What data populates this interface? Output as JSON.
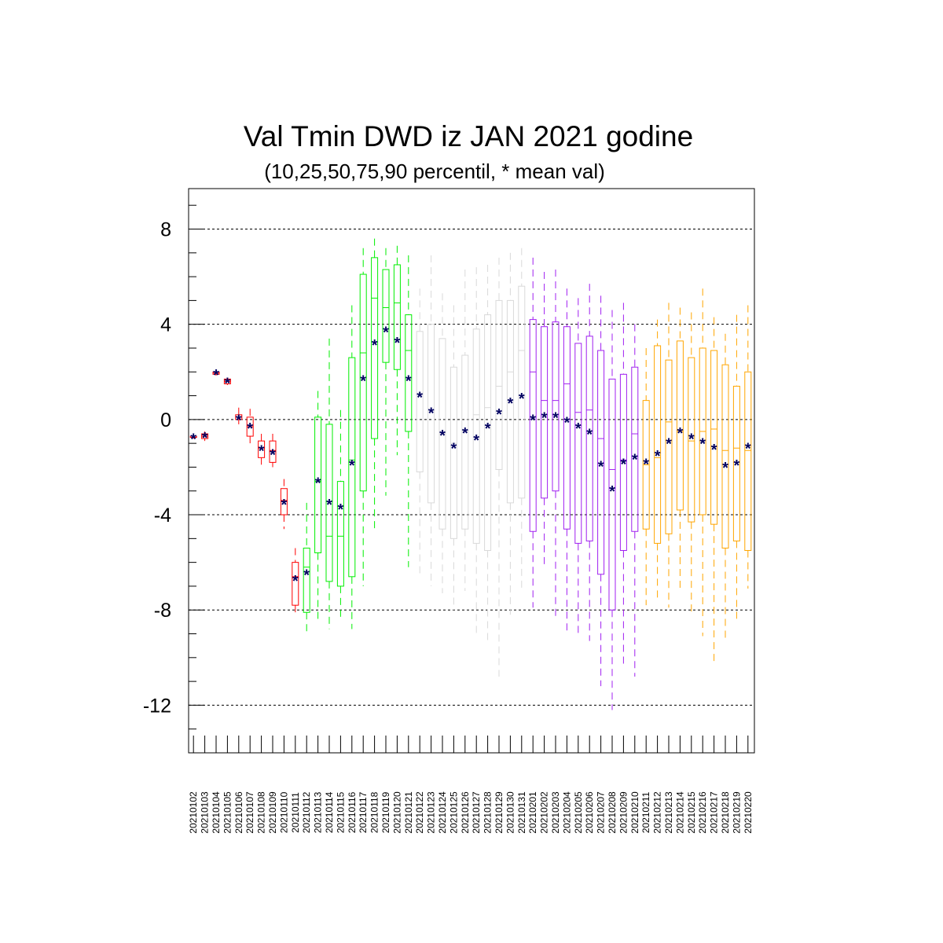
{
  "chart_data": {
    "type": "box",
    "title": "Val Tmin DWD iz JAN 2021 godine",
    "subtitle": "(10,25,50,75,90 percentil, * mean val)",
    "xlabel": "",
    "ylabel": "",
    "ylim": [
      -14,
      9.7
    ],
    "yticks": [
      8,
      4,
      0,
      -4,
      -8,
      -12
    ],
    "ytick_labels": [
      "8",
      "4",
      "0",
      "-4",
      "-8",
      "-12"
    ],
    "grid": "horizontal dashed at major y ticks",
    "categories": [
      "20210102",
      "20210103",
      "20210104",
      "20210105",
      "20210106",
      "20210107",
      "20210108",
      "20210109",
      "20210110",
      "20210111",
      "20210112",
      "20210113",
      "20210114",
      "20210115",
      "20210116",
      "20210117",
      "20210118",
      "20210119",
      "20210120",
      "20210121",
      "20210122",
      "20210123",
      "20210124",
      "20210125",
      "20210126",
      "20210127",
      "20210128",
      "20210129",
      "20210130",
      "20210131",
      "20210201",
      "20210202",
      "20210203",
      "20210204",
      "20210205",
      "20210206",
      "20210207",
      "20210208",
      "20210209",
      "20210210",
      "20210211",
      "20210212",
      "20210213",
      "20210214",
      "20210215",
      "20210216",
      "20210217",
      "20210218",
      "20210219",
      "20210220"
    ],
    "series": [
      {
        "color": "#ff0000",
        "boxes": [
          {
            "p10": -0.8,
            "p25": -0.75,
            "p50": -0.75,
            "p75": -0.7,
            "p90": -0.7,
            "mean": -0.75
          },
          {
            "p10": -0.9,
            "p25": -0.8,
            "p50": -0.7,
            "p75": -0.6,
            "p90": -0.5,
            "mean": -0.7
          },
          {
            "p10": 1.85,
            "p25": 1.9,
            "p50": 1.95,
            "p75": 2.0,
            "p90": 2.05,
            "mean": 1.95
          },
          {
            "p10": 1.45,
            "p25": 1.5,
            "p50": 1.6,
            "p75": 1.7,
            "p90": 1.75,
            "mean": 1.6
          },
          {
            "p10": -0.2,
            "p25": 0.0,
            "p50": 0.1,
            "p75": 0.2,
            "p90": 0.5,
            "mean": 0.05
          },
          {
            "p10": -1.0,
            "p25": -0.7,
            "p50": -0.3,
            "p75": 0.1,
            "p90": 0.45,
            "mean": -0.3
          },
          {
            "p10": -2.0,
            "p25": -1.6,
            "p50": -1.2,
            "p75": -0.9,
            "p90": -0.6,
            "mean": -1.25
          },
          {
            "p10": -2.0,
            "p25": -1.8,
            "p50": -1.3,
            "p75": -0.9,
            "p90": -0.6,
            "mean": -1.4
          },
          {
            "p10": -4.6,
            "p25": -4.0,
            "p50": -3.4,
            "p75": -2.9,
            "p90": -2.5,
            "mean": -3.5
          },
          {
            "p10": -8.1,
            "p25": -7.8,
            "p50": -6.6,
            "p75": -6.0,
            "p90": -5.4,
            "mean": -6.7
          }
        ]
      },
      {
        "color": "#00ee00",
        "boxes": [
          {
            "p10": -8.9,
            "p25": -8.1,
            "p50": -6.2,
            "p75": -5.4,
            "p90": -3.5,
            "mean": -6.45
          },
          {
            "p10": -8.5,
            "p25": -5.6,
            "p50": -2.6,
            "p75": 0.1,
            "p90": 1.2,
            "mean": -2.6
          },
          {
            "p10": -8.8,
            "p25": -6.8,
            "p50": -4.9,
            "p75": -0.2,
            "p90": 3.4,
            "mean": -3.5
          },
          {
            "p10": -8.4,
            "p25": -7.0,
            "p50": -4.9,
            "p75": -2.6,
            "p90": 0.4,
            "mean": -3.7
          },
          {
            "p10": -8.8,
            "p25": -6.6,
            "p50": -1.7,
            "p75": 2.6,
            "p90": 4.8,
            "mean": -1.85
          },
          {
            "p10": -7.0,
            "p25": -3.0,
            "p50": 2.8,
            "p75": 6.1,
            "p90": 7.2,
            "mean": 1.7
          },
          {
            "p10": -4.6,
            "p25": -0.8,
            "p50": 5.1,
            "p75": 6.8,
            "p90": 7.6,
            "mean": 3.2
          },
          {
            "p10": -3.2,
            "p25": 2.4,
            "p50": 4.7,
            "p75": 6.3,
            "p90": 7.2,
            "mean": 3.75
          },
          {
            "p10": -1.5,
            "p25": 2.1,
            "p50": 4.9,
            "p75": 6.5,
            "p90": 7.3,
            "mean": 3.3
          },
          {
            "p10": -6.2,
            "p25": -0.5,
            "p50": 2.9,
            "p75": 4.4,
            "p90": 6.9,
            "mean": 1.7
          }
        ]
      },
      {
        "color": "#d9d9d9",
        "boxes": [
          {
            "p10": -6.6,
            "p25": -2.2,
            "p50": 1.1,
            "p75": 3.7,
            "p90": 5.5,
            "mean": 1.0
          },
          {
            "p10": -7.0,
            "p25": -3.5,
            "p50": 0.4,
            "p75": 4.0,
            "p90": 6.9,
            "mean": 0.35
          },
          {
            "p10": -7.3,
            "p25": -4.6,
            "p50": -0.6,
            "p75": 3.4,
            "p90": 5.3,
            "mean": -0.6
          },
          {
            "p10": -8.0,
            "p25": -5.0,
            "p50": -1.0,
            "p75": 2.2,
            "p90": 4.8,
            "mean": -1.15
          },
          {
            "p10": -7.2,
            "p25": -4.6,
            "p50": -0.5,
            "p75": 2.7,
            "p90": 6.3,
            "mean": -0.5
          },
          {
            "p10": -9.1,
            "p25": -5.2,
            "p50": 0.2,
            "p75": 3.8,
            "p90": 6.4,
            "mean": -0.8
          },
          {
            "p10": -9.4,
            "p25": -5.5,
            "p50": 0.5,
            "p75": 4.4,
            "p90": 6.5,
            "mean": -0.3
          },
          {
            "p10": -10.8,
            "p25": -2.1,
            "p50": 1.4,
            "p75": 5.0,
            "p90": 6.8,
            "mean": 0.3
          },
          {
            "p10": -8.2,
            "p25": -3.5,
            "p50": 2.0,
            "p75": 5.0,
            "p90": 7.0,
            "mean": 0.75
          },
          {
            "p10": -7.1,
            "p25": -3.3,
            "p50": 2.9,
            "p75": 5.6,
            "p90": 7.2,
            "mean": 0.95
          }
        ]
      },
      {
        "color": "#a020f0",
        "boxes": [
          {
            "p10": -7.9,
            "p25": -4.7,
            "p50": 2.0,
            "p75": 4.2,
            "p90": 6.8,
            "mean": 0.05
          },
          {
            "p10": -6.2,
            "p25": -3.3,
            "p50": 0.8,
            "p75": 3.9,
            "p90": 6.2,
            "mean": 0.15
          },
          {
            "p10": -8.3,
            "p25": -3.0,
            "p50": 0.8,
            "p75": 4.1,
            "p90": 6.3,
            "mean": 0.15
          },
          {
            "p10": -9.0,
            "p25": -4.6,
            "p50": 1.5,
            "p75": 3.9,
            "p90": 5.5,
            "mean": -0.05
          },
          {
            "p10": -9.0,
            "p25": -5.2,
            "p50": 0.3,
            "p75": 3.2,
            "p90": 5.1,
            "mean": -0.3
          },
          {
            "p10": -9.3,
            "p25": -5.1,
            "p50": 0.4,
            "p75": 3.5,
            "p90": 5.7,
            "mean": -0.55
          },
          {
            "p10": -11.2,
            "p25": -6.5,
            "p50": -0.8,
            "p75": 2.9,
            "p90": 5.2,
            "mean": -1.9
          },
          {
            "p10": -12.2,
            "p25": -8.0,
            "p50": -2.1,
            "p75": 1.7,
            "p90": 4.6,
            "mean": -2.95
          },
          {
            "p10": -10.4,
            "p25": -5.5,
            "p50": -1.7,
            "p75": 1.9,
            "p90": 4.9,
            "mean": -1.8
          },
          {
            "p10": -10.8,
            "p25": -4.7,
            "p50": -0.6,
            "p75": 2.2,
            "p90": 4.0,
            "mean": -1.6
          }
        ]
      },
      {
        "color": "#ffa500",
        "boxes": [
          {
            "p10": -7.8,
            "p25": -4.6,
            "p50": -1.9,
            "p75": 0.8,
            "p90": 3.0,
            "mean": -1.8
          },
          {
            "p10": -7.6,
            "p25": -5.2,
            "p50": -1.6,
            "p75": 3.1,
            "p90": 4.2,
            "mean": -1.45
          },
          {
            "p10": -7.9,
            "p25": -4.8,
            "p50": -0.1,
            "p75": 2.5,
            "p90": 4.9,
            "mean": -0.95
          },
          {
            "p10": -7.2,
            "p25": -3.8,
            "p50": -0.5,
            "p75": 3.3,
            "p90": 4.7,
            "mean": -0.5
          },
          {
            "p10": -8.1,
            "p25": -4.3,
            "p50": -0.9,
            "p75": 2.6,
            "p90": 4.5,
            "mean": -0.75
          },
          {
            "p10": -9.1,
            "p25": -4.0,
            "p50": -0.5,
            "p75": 3.0,
            "p90": 5.5,
            "mean": -0.95
          },
          {
            "p10": -10.3,
            "p25": -4.4,
            "p50": -0.4,
            "p75": 2.9,
            "p90": 4.3,
            "mean": -1.2
          },
          {
            "p10": -9.3,
            "p25": -5.4,
            "p50": -1.3,
            "p75": 2.3,
            "p90": 3.6,
            "mean": -1.95
          },
          {
            "p10": -8.4,
            "p25": -5.1,
            "p50": -1.2,
            "p75": 1.4,
            "p90": 4.4,
            "mean": -1.85
          },
          {
            "p10": -7.1,
            "p25": -5.5,
            "p50": -1.3,
            "p75": 2.0,
            "p90": 4.8,
            "mean": -1.15
          }
        ]
      }
    ],
    "mean_marker": "*",
    "mean_color": "#000060"
  }
}
